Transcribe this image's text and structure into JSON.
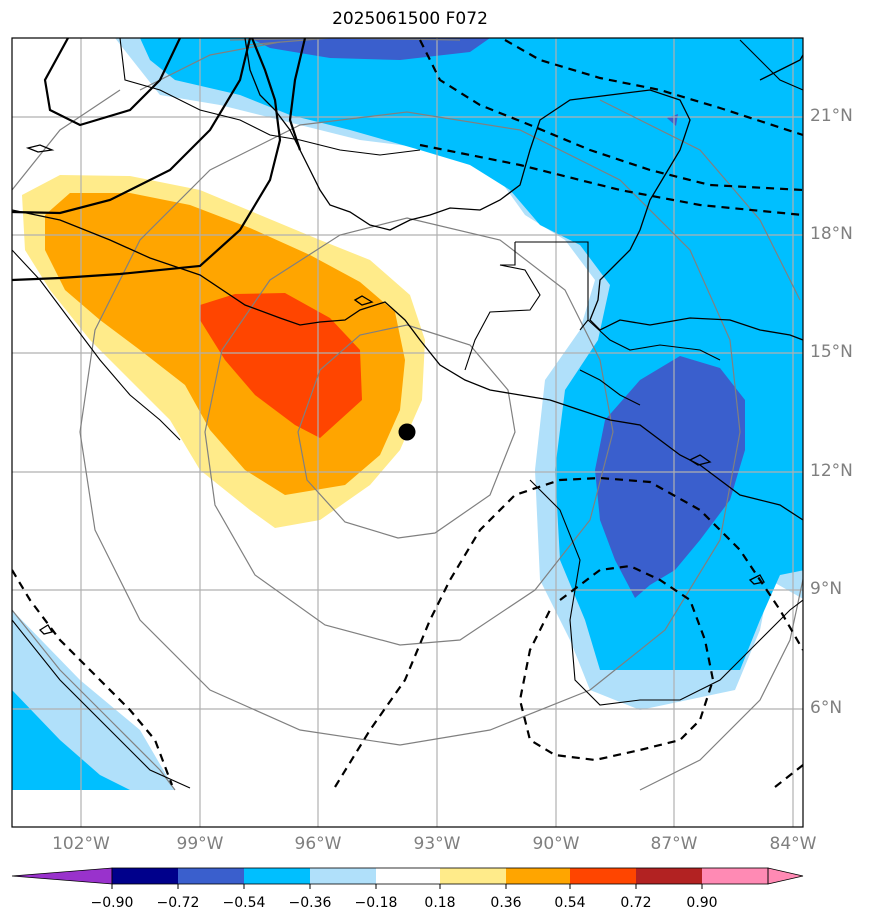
{
  "title": "2025061500 F072",
  "lat_labels": [
    "21°N",
    "18°N",
    "15°N",
    "12°N",
    "9°N",
    "6°N"
  ],
  "lon_labels": [
    "102°W",
    "99°W",
    "96°W",
    "93°W",
    "90°W",
    "87°W",
    "84°W"
  ],
  "colorbar": {
    "labels": [
      "−0.90",
      "−0.72",
      "−0.54",
      "−0.36",
      "−0.18",
      "0.18",
      "0.36",
      "0.54",
      "0.72",
      "0.90"
    ],
    "colors": [
      "#9932cc",
      "#00008b",
      "#3a5fcd",
      "#00bfff",
      "#b0e0fa",
      "#ffffff",
      "#ffeb8a",
      "#ffa500",
      "#ff4500",
      "#b22222",
      "#ff8ab4"
    ]
  },
  "colors": {
    "land_line": "#000000",
    "grid": "#b0b0b0",
    "rings": "#808080",
    "storm_center": "#000000"
  },
  "storm_marker": "filled-circle"
}
